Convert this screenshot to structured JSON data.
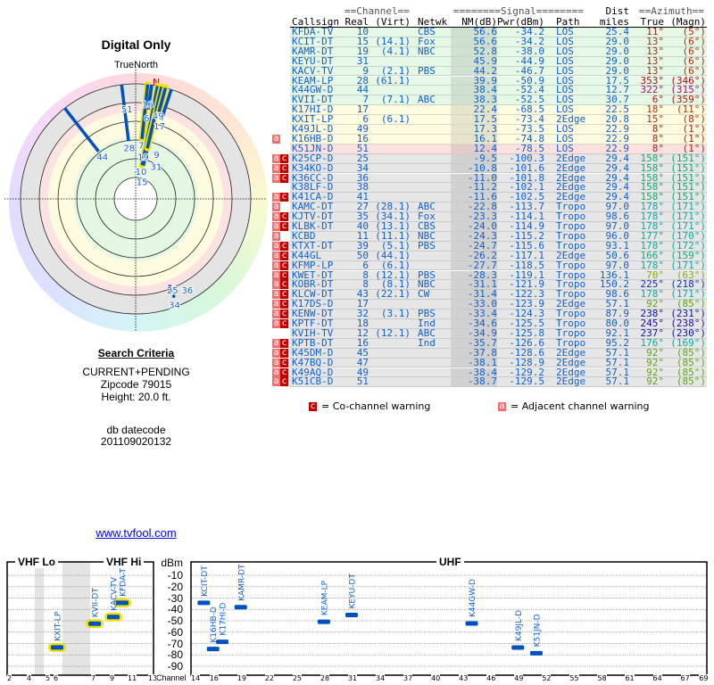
{
  "polar": {
    "title": "Digital Only",
    "north_label": "TrueNorth",
    "north_marker": "N"
  },
  "search": {
    "title": "Search Criteria",
    "mode": "CURRENT+PENDING",
    "zipcode": "Zipcode 79015",
    "height": "Height: 20.0 ft.",
    "db_label": "db datecode",
    "db_value": "201109020132"
  },
  "link": "www.tvfool.com",
  "table": {
    "header1": {
      "channel": "==Channel==",
      "signal": "========Signal========",
      "dist": "Dist",
      "azimuth": "==Azimuth=="
    },
    "header2": {
      "callsign": "Callsign",
      "real": "Real",
      "virt": "(Virt)",
      "netwk": "Netwk",
      "nm": "NM(dB)",
      "pwr": "Pwr(dBm)",
      "path": "Path",
      "dist": "miles",
      "true": "True",
      "magn": "(Magn)"
    },
    "band_colors": {
      "green": "#e6f8e6",
      "yellow": "#fdfbe0",
      "pink": "#fde0e0",
      "grey": "#e6e6e6"
    },
    "rows": [
      {
        "flags": "",
        "call": "KFDA-TV",
        "real": "10",
        "virt": "",
        "net": "CBS",
        "nm": "56.6",
        "pwr": "-34.2",
        "path": "LOS",
        "dist": "25.4",
        "tru": "11°",
        "magn": "(5°)",
        "band": "green"
      },
      {
        "flags": "",
        "call": "KCIT-DT",
        "real": "15",
        "virt": "(14.1)",
        "net": "Fox",
        "nm": "56.6",
        "pwr": "-34.2",
        "path": "LOS",
        "dist": "29.0",
        "tru": "13°",
        "magn": "(6°)",
        "band": "green"
      },
      {
        "flags": "",
        "call": "KAMR-DT",
        "real": "19",
        "virt": "(4.1)",
        "net": "NBC",
        "nm": "52.8",
        "pwr": "-38.0",
        "path": "LOS",
        "dist": "29.0",
        "tru": "13°",
        "magn": "(6°)",
        "band": "green"
      },
      {
        "flags": "",
        "call": "KEYU-DT",
        "real": "31",
        "virt": "",
        "net": "",
        "nm": "45.9",
        "pwr": "-44.9",
        "path": "LOS",
        "dist": "29.0",
        "tru": "13°",
        "magn": "(6°)",
        "band": "green"
      },
      {
        "flags": "",
        "call": "KACV-TV",
        "real": "9",
        "virt": "(2.1)",
        "net": "PBS",
        "nm": "44.2",
        "pwr": "-46.7",
        "path": "LOS",
        "dist": "29.0",
        "tru": "13°",
        "magn": "(6°)",
        "band": "green"
      },
      {
        "flags": "",
        "call": "KEAM-LP",
        "real": "28",
        "virt": "(61.1)",
        "net": "",
        "nm": "39.9",
        "pwr": "-50.9",
        "path": "LOS",
        "dist": "17.5",
        "tru": "353°",
        "magn": "(346°)",
        "band": "green"
      },
      {
        "flags": "",
        "call": "K44GW-D",
        "real": "44",
        "virt": "",
        "net": "",
        "nm": "38.4",
        "pwr": "-52.4",
        "path": "LOS",
        "dist": "12.7",
        "tru": "322°",
        "magn": "(315°)",
        "band": "green"
      },
      {
        "flags": "",
        "call": "KVII-DT",
        "real": "7",
        "virt": "(7.1)",
        "net": "ABC",
        "nm": "38.3",
        "pwr": "-52.5",
        "path": "LOS",
        "dist": "30.7",
        "tru": "6°",
        "magn": "(359°)",
        "band": "green"
      },
      {
        "flags": "",
        "call": "K17HI-D",
        "real": "17",
        "virt": "",
        "net": "",
        "nm": "22.4",
        "pwr": "-68.5",
        "path": "LOS",
        "dist": "22.5",
        "tru": "18°",
        "magn": "(11°)",
        "band": "yellow"
      },
      {
        "flags": "",
        "call": "KXIT-LP",
        "real": "6",
        "virt": "(6.1)",
        "net": "",
        "nm": "17.5",
        "pwr": "-73.4",
        "path": "2Edge",
        "dist": "20.8",
        "tru": "15°",
        "magn": "(8°)",
        "band": "yellow"
      },
      {
        "flags": "",
        "call": "K49JL-D",
        "real": "49",
        "virt": "",
        "net": "",
        "nm": "17.3",
        "pwr": "-73.5",
        "path": "LOS",
        "dist": "22.9",
        "tru": "8°",
        "magn": "(1°)",
        "band": "yellow"
      },
      {
        "flags": "a",
        "call": "K16HB-D",
        "real": "16",
        "virt": "",
        "net": "",
        "nm": "16.1",
        "pwr": "-74.8",
        "path": "LOS",
        "dist": "22.9",
        "tru": "8°",
        "magn": "(1°)",
        "band": "yellow"
      },
      {
        "flags": "",
        "call": "K51JN-D",
        "real": "51",
        "virt": "",
        "net": "",
        "nm": "12.4",
        "pwr": "-78.5",
        "path": "LOS",
        "dist": "22.9",
        "tru": "8°",
        "magn": "(1°)",
        "band": "pink"
      },
      {
        "flags": "ac",
        "call": "K25CP-D",
        "real": "25",
        "virt": "",
        "net": "",
        "nm": "-9.5",
        "pwr": "-100.3",
        "path": "2Edge",
        "dist": "29.4",
        "tru": "158°",
        "magn": "(151°)",
        "band": "grey"
      },
      {
        "flags": "ac",
        "call": "K34KO-D",
        "real": "34",
        "virt": "",
        "net": "",
        "nm": "-10.8",
        "pwr": "-101.6",
        "path": "2Edge",
        "dist": "29.4",
        "tru": "158°",
        "magn": "(151°)",
        "band": "grey"
      },
      {
        "flags": "ac",
        "call": "K36CC-D",
        "real": "36",
        "virt": "",
        "net": "",
        "nm": "-11.0",
        "pwr": "-101.8",
        "path": "2Edge",
        "dist": "29.4",
        "tru": "158°",
        "magn": "(151°)",
        "band": "grey"
      },
      {
        "flags": "",
        "call": "K38LF-D",
        "real": "38",
        "virt": "",
        "net": "",
        "nm": "-11.2",
        "pwr": "-102.1",
        "path": "2Edge",
        "dist": "29.4",
        "tru": "158°",
        "magn": "(151°)",
        "band": "grey"
      },
      {
        "flags": "ac",
        "call": "K41CA-D",
        "real": "41",
        "virt": "",
        "net": "",
        "nm": "-11.6",
        "pwr": "-102.5",
        "path": "2Edge",
        "dist": "29.4",
        "tru": "158°",
        "magn": "(151°)",
        "band": "grey"
      },
      {
        "flags": "a",
        "call": "KAMC-DT",
        "real": "27",
        "virt": "(28.1)",
        "net": "ABC",
        "nm": "-22.8",
        "pwr": "-113.7",
        "path": "Tropo",
        "dist": "97.0",
        "tru": "178°",
        "magn": "(171°)",
        "band": "grey"
      },
      {
        "flags": "ac",
        "call": "KJTV-DT",
        "real": "35",
        "virt": "(34.1)",
        "net": "Fox",
        "nm": "-23.3",
        "pwr": "-114.1",
        "path": "Tropo",
        "dist": "98.6",
        "tru": "178°",
        "magn": "(171°)",
        "band": "grey"
      },
      {
        "flags": "ac",
        "call": "KLBK-DT",
        "real": "40",
        "virt": "(13.1)",
        "net": "CBS",
        "nm": "-24.0",
        "pwr": "-114.9",
        "path": "Tropo",
        "dist": "97.0",
        "tru": "178°",
        "magn": "(171°)",
        "band": "grey"
      },
      {
        "flags": "a",
        "call": "KCBD",
        "real": "11",
        "virt": "(11.1)",
        "net": "NBC",
        "nm": "-24.3",
        "pwr": "-115.2",
        "path": "Tropo",
        "dist": "96.0",
        "tru": "177°",
        "magn": "(170°)",
        "band": "grey"
      },
      {
        "flags": "ac",
        "call": "KTXT-DT",
        "real": "39",
        "virt": "(5.1)",
        "net": "PBS",
        "nm": "-24.7",
        "pwr": "-115.6",
        "path": "Tropo",
        "dist": "93.1",
        "tru": "178°",
        "magn": "(172°)",
        "band": "grey"
      },
      {
        "flags": "ac",
        "call": "K44GL",
        "real": "50",
        "virt": "(44.1)",
        "net": "",
        "nm": "-26.2",
        "pwr": "-117.1",
        "path": "2Edge",
        "dist": "50.6",
        "tru": "166°",
        "magn": "(159°)",
        "band": "grey"
      },
      {
        "flags": "ac",
        "call": "KFMP-LP",
        "real": "6",
        "virt": "(6.1)",
        "net": "",
        "nm": "-27.7",
        "pwr": "-118.5",
        "path": "Tropo",
        "dist": "97.0",
        "tru": "178°",
        "magn": "(171°)",
        "band": "grey"
      },
      {
        "flags": "ac",
        "call": "KWET-DT",
        "real": "8",
        "virt": "(12.1)",
        "net": "PBS",
        "nm": "-28.3",
        "pwr": "-119.1",
        "path": "Tropo",
        "dist": "136.1",
        "tru": "70°",
        "magn": "(63°)",
        "band": "grey"
      },
      {
        "flags": "ac",
        "call": "KOBR-DT",
        "real": "8",
        "virt": "(8.1)",
        "net": "NBC",
        "nm": "-31.1",
        "pwr": "-121.9",
        "path": "Tropo",
        "dist": "150.2",
        "tru": "225°",
        "magn": "(218°)",
        "band": "grey"
      },
      {
        "flags": "ac",
        "call": "KLCW-DT",
        "real": "43",
        "virt": "(22.1)",
        "net": "CW",
        "nm": "-31.4",
        "pwr": "-122.3",
        "path": "Tropo",
        "dist": "98.6",
        "tru": "178°",
        "magn": "(171°)",
        "band": "grey"
      },
      {
        "flags": "ac",
        "call": "K17DS-D",
        "real": "17",
        "virt": "",
        "net": "",
        "nm": "-33.0",
        "pwr": "-123.9",
        "path": "2Edge",
        "dist": "57.1",
        "tru": "92°",
        "magn": "(85°)",
        "band": "grey"
      },
      {
        "flags": "ac",
        "call": "KENW-DT",
        "real": "32",
        "virt": "(3.1)",
        "net": "PBS",
        "nm": "-33.4",
        "pwr": "-124.3",
        "path": "Tropo",
        "dist": "87.9",
        "tru": "238°",
        "magn": "(231°)",
        "band": "grey"
      },
      {
        "flags": "ac",
        "call": "KPTF-DT",
        "real": "18",
        "virt": "",
        "net": "Ind",
        "nm": "-34.6",
        "pwr": "-125.5",
        "path": "Tropo",
        "dist": "80.0",
        "tru": "245°",
        "magn": "(238°)",
        "band": "grey"
      },
      {
        "flags": "",
        "call": "KVIH-TV",
        "real": "12",
        "virt": "(12.1)",
        "net": "ABC",
        "nm": "-34.9",
        "pwr": "-125.8",
        "path": "Tropo",
        "dist": "92.1",
        "tru": "237°",
        "magn": "(230°)",
        "band": "grey"
      },
      {
        "flags": "ac",
        "call": "KPTB-DT",
        "real": "16",
        "virt": "",
        "net": "Ind",
        "nm": "-35.7",
        "pwr": "-126.6",
        "path": "Tropo",
        "dist": "95.2",
        "tru": "176°",
        "magn": "(169°)",
        "band": "grey"
      },
      {
        "flags": "ac",
        "call": "K45DM-D",
        "real": "45",
        "virt": "",
        "net": "",
        "nm": "-37.8",
        "pwr": "-128.6",
        "path": "2Edge",
        "dist": "57.1",
        "tru": "92°",
        "magn": "(85°)",
        "band": "grey"
      },
      {
        "flags": "ac",
        "call": "K47BQ-D",
        "real": "47",
        "virt": "",
        "net": "",
        "nm": "-38.1",
        "pwr": "-128.9",
        "path": "2Edge",
        "dist": "57.1",
        "tru": "92°",
        "magn": "(85°)",
        "band": "grey"
      },
      {
        "flags": "ac",
        "call": "K49AQ-D",
        "real": "49",
        "virt": "",
        "net": "",
        "nm": "-38.4",
        "pwr": "-129.2",
        "path": "2Edge",
        "dist": "57.1",
        "tru": "92°",
        "magn": "(85°)",
        "band": "grey"
      },
      {
        "flags": "ac",
        "call": "K51CB-D",
        "real": "51",
        "virt": "",
        "net": "",
        "nm": "-38.7",
        "pwr": "-129.5",
        "path": "2Edge",
        "dist": "57.1",
        "tru": "92°",
        "magn": "(85°)",
        "band": "grey"
      }
    ]
  },
  "legend": {
    "co_flag": "c",
    "co_text": "= Co-channel warning",
    "adj_flag": "a",
    "adj_text": "= Adjacent channel warning"
  },
  "spectrum": {
    "vhf_lo": "VHF Lo",
    "vhf_hi": "VHF Hi",
    "uhf": "UHF",
    "unit": "dBm",
    "channel_label": "Channel",
    "dbm_ticks": [
      "-10",
      "-20",
      "-30",
      "-40",
      "-50",
      "-60",
      "-70",
      "-80",
      "-90"
    ],
    "vhf_channels": [
      "2",
      "4",
      "5",
      "6",
      "7",
      "9",
      "11",
      "13"
    ],
    "uhf_channels": [
      "14",
      "16",
      "19",
      "22",
      "25",
      "28",
      "31",
      "34",
      "37",
      "40",
      "43",
      "46",
      "49",
      "52",
      "55",
      "58",
      "61",
      "64",
      "67",
      "69"
    ]
  },
  "colors": {
    "signal_line": "#0050c0",
    "highlight": "#f0e000",
    "label": "#1060d0",
    "flag_adjacent": "#f07070",
    "flag_cochannel": "#c00000"
  }
}
